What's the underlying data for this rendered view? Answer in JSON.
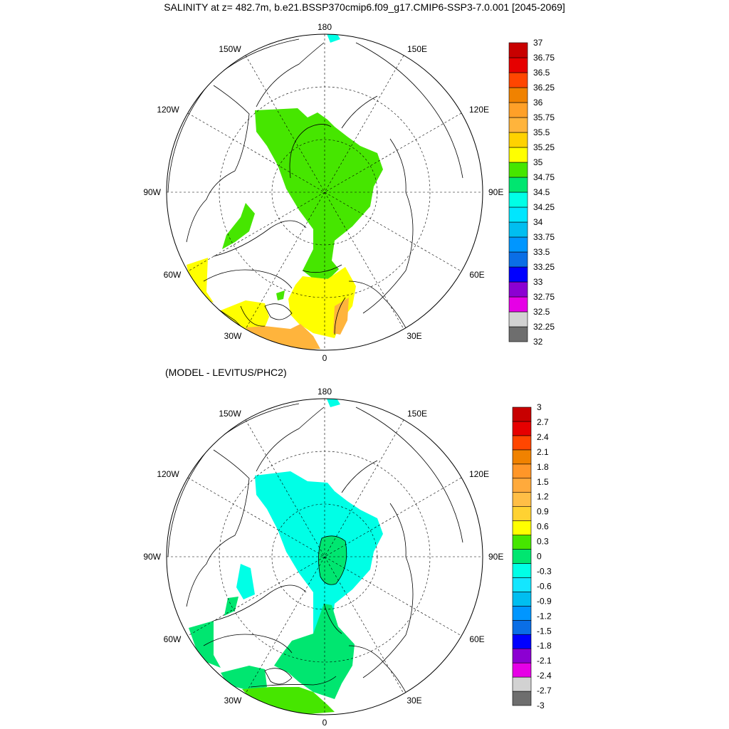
{
  "page_title": "SALINITY at z= 482.7m, b.e21.BSSP370cmip6.f09_g17.CMIP6-SSP3-7.0.001 [2045-2069]",
  "difference_title": "(MODEL - LEVITUS/PHC2)",
  "longitude_labels": {
    "top": "180",
    "bottom": "0",
    "left": "90W",
    "right": "90E",
    "upper_left": "150W",
    "upper_right": "150E",
    "mid_upper_left": "120W",
    "mid_upper_right": "120E",
    "mid_lower_left": "60W",
    "mid_lower_right": "60E",
    "lower_left": "30W",
    "lower_right": "30E"
  },
  "colors": {
    "salinity": [
      "#6e6e6e",
      "#d2d2d2",
      "#e600e6",
      "#8c00d2",
      "#0000ff",
      "#0a6ee6",
      "#0096ff",
      "#00bef0",
      "#00e6ff",
      "#00ffe6",
      "#00e670",
      "#46e600",
      "#ffff00",
      "#ffd200",
      "#ffb43c",
      "#ffa028",
      "#f08200",
      "#ff4600",
      "#e60000",
      "#c80000"
    ],
    "difference": [
      "#6e6e6e",
      "#d2d2d2",
      "#e600e6",
      "#8c00d2",
      "#0000ff",
      "#0a6ee6",
      "#0096ff",
      "#00bef0",
      "#14e6ff",
      "#00ffe6",
      "#00e670",
      "#46e600",
      "#ffff00",
      "#ffd232",
      "#ffbe46",
      "#ffaa3c",
      "#ff9628",
      "#f08200",
      "#ff4600",
      "#e60000",
      "#c80000"
    ]
  },
  "salinity_legend": {
    "ticks": [
      "37",
      "36.75",
      "36.5",
      "36.25",
      "36",
      "35.75",
      "35.5",
      "35.25",
      "35",
      "34.75",
      "34.5",
      "34.25",
      "34",
      "33.75",
      "33.5",
      "33.25",
      "33",
      "32.75",
      "32.5",
      "32.25",
      "32"
    ]
  },
  "difference_legend": {
    "ticks": [
      "3",
      "2.7",
      "2.4",
      "2.1",
      "1.8",
      "1.5",
      "1.2",
      "0.9",
      "0.6",
      "0.3",
      "0",
      "-0.3",
      "-0.6",
      "-0.9",
      "-1.2",
      "-1.5",
      "-1.8",
      "-2.1",
      "-2.4",
      "-2.7",
      "-3"
    ]
  }
}
